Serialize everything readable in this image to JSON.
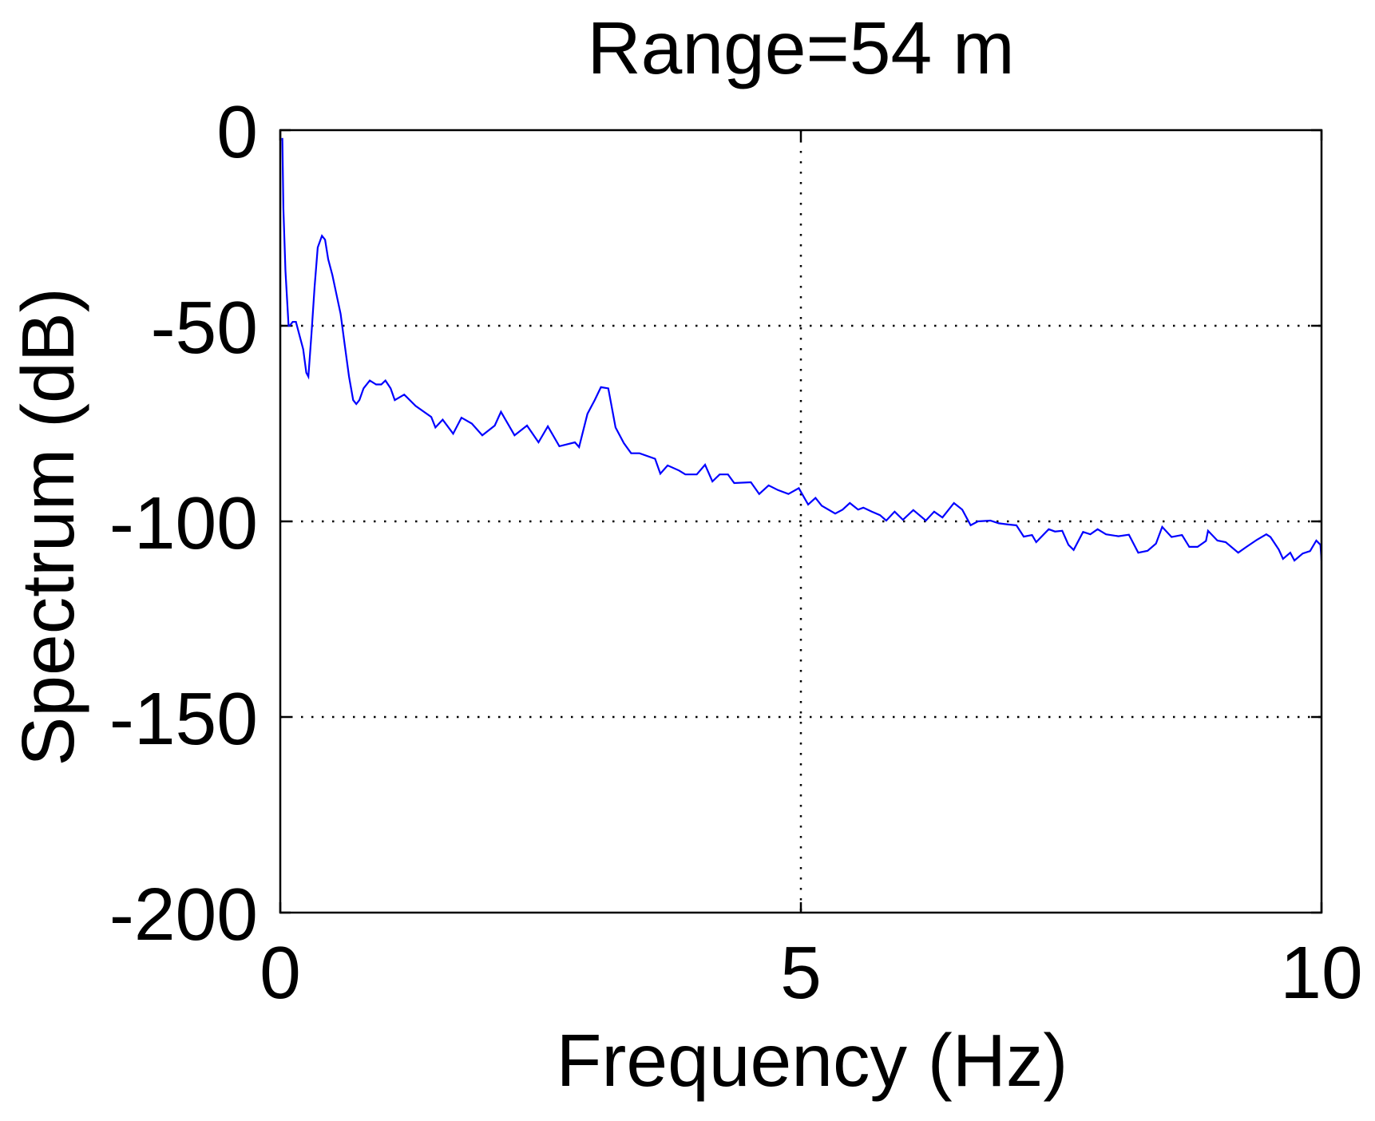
{
  "chart_data": {
    "type": "line",
    "title": "Range=54 m",
    "xlabel": "Frequency (Hz)",
    "ylabel": "Spectrum (dB)",
    "xlim": [
      0,
      10
    ],
    "ylim": [
      -200,
      0
    ],
    "xticks": [
      0,
      5,
      10
    ],
    "xtick_labels": [
      "0",
      "5",
      "10"
    ],
    "yticks": [
      0,
      -50,
      -100,
      -150,
      -200
    ],
    "ytick_labels": [
      "0",
      "-50",
      "-100",
      "-150",
      "-200"
    ],
    "grid": true,
    "grid_style": "dotted",
    "legend": null,
    "series": [
      {
        "name": "Spectrum",
        "color": "#0000ff",
        "x": [
          0.02,
          0.03,
          0.05,
          0.08,
          0.09,
          0.12,
          0.15,
          0.18,
          0.22,
          0.25,
          0.27,
          0.3,
          0.33,
          0.36,
          0.4,
          0.43,
          0.46,
          0.5,
          0.54,
          0.58,
          0.62,
          0.66,
          0.7,
          0.73,
          0.76,
          0.8,
          0.86,
          0.92,
          0.97,
          1.01,
          1.06,
          1.1,
          1.19,
          1.3,
          1.45,
          1.49,
          1.56,
          1.66,
          1.74,
          1.84,
          1.94,
          2.06,
          2.12,
          2.25,
          2.37,
          2.48,
          2.57,
          2.68,
          2.83,
          2.87,
          2.95,
          3.02,
          3.08,
          3.15,
          3.22,
          3.3,
          3.37,
          3.45,
          3.6,
          3.65,
          3.72,
          3.83,
          3.89,
          4.0,
          4.08,
          4.15,
          4.22,
          4.3,
          4.36,
          4.52,
          4.6,
          4.69,
          4.78,
          4.88,
          4.98,
          5.07,
          5.14,
          5.2,
          5.33,
          5.4,
          5.47,
          5.55,
          5.6,
          5.68,
          5.76,
          5.82,
          5.9,
          5.98,
          6.08,
          6.2,
          6.28,
          6.36,
          6.47,
          6.55,
          6.63,
          6.7,
          6.82,
          6.9,
          6.99,
          7.07,
          7.14,
          7.22,
          7.26,
          7.38,
          7.44,
          7.51,
          7.57,
          7.62,
          7.71,
          7.78,
          7.85,
          7.93,
          8.05,
          8.15,
          8.24,
          8.33,
          8.41,
          8.47,
          8.56,
          8.66,
          8.73,
          8.81,
          8.89,
          8.91,
          9.0,
          9.08,
          9.2,
          9.28,
          9.38,
          9.47,
          9.51,
          9.59,
          9.63,
          9.7,
          9.74,
          9.82,
          9.89,
          9.95,
          9.99,
          10.0
        ],
        "y": [
          -2,
          -20,
          -36,
          -50,
          -50,
          -49,
          -49,
          -52,
          -56,
          -62,
          -63,
          -52,
          -40,
          -30,
          -27,
          -28,
          -33,
          -37,
          -42,
          -47,
          -55,
          -63,
          -69,
          -70,
          -69,
          -66,
          -64,
          -65,
          -65,
          -64,
          -66,
          -69,
          -67.6,
          -70.5,
          -73.3,
          -76,
          -74,
          -77.6,
          -73.5,
          -75,
          -78,
          -75.5,
          -72,
          -78,
          -75.5,
          -79.8,
          -75.7,
          -80.8,
          -79.8,
          -81,
          -72.5,
          -69,
          -65.7,
          -66,
          -76,
          -80,
          -82.6,
          -82.6,
          -84,
          -87.8,
          -85.7,
          -87,
          -88,
          -88,
          -85.5,
          -89.8,
          -88,
          -88,
          -90.2,
          -90,
          -93,
          -90.8,
          -92,
          -93,
          -91.5,
          -95.7,
          -94,
          -96,
          -98,
          -97,
          -95.3,
          -97,
          -96.5,
          -97.5,
          -98.4,
          -99.8,
          -97.5,
          -99.6,
          -97.1,
          -99.8,
          -97.5,
          -99,
          -95.3,
          -97,
          -101,
          -100,
          -99.8,
          -100.5,
          -100.8,
          -101,
          -103.9,
          -103.5,
          -105.3,
          -102,
          -102.6,
          -102.4,
          -106,
          -107.3,
          -102.7,
          -103.3,
          -102,
          -103.3,
          -103.8,
          -103.4,
          -108,
          -107.5,
          -105.7,
          -101.4,
          -104,
          -103.5,
          -106.5,
          -106.5,
          -105,
          -102.4,
          -104.9,
          -105.3,
          -108,
          -106.5,
          -104.7,
          -103.3,
          -104,
          -107.2,
          -109.6,
          -108,
          -110,
          -108.2,
          -107.6,
          -104.9,
          -106,
          -110
        ]
      }
    ]
  }
}
